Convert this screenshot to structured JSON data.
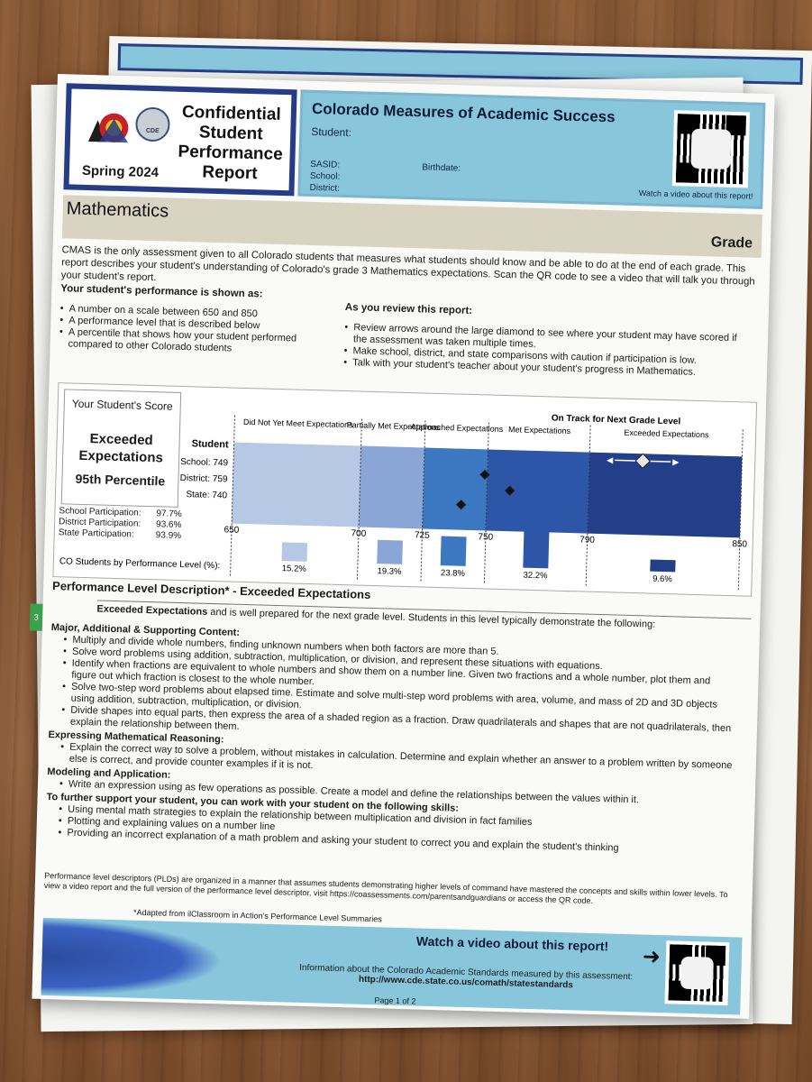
{
  "report": {
    "header_title": "Confidential Student Performance Report",
    "season": "Spring 2024",
    "agency": "CDE",
    "banner_title": "Colorado Measures of Academic Success",
    "student_label": "Student:",
    "sasid_label": "SASID:",
    "birthdate_label": "Birthdate:",
    "school_label": "School:",
    "district_label": "District:",
    "video_link": "Watch a video about this report!"
  },
  "subject": {
    "name": "Mathematics",
    "grade_label": "Grade"
  },
  "intro": "CMAS is the only assessment given to all Colorado students that measures what students should know and be able to do at the end of each grade. This report describes your student's understanding of Colorado's grade 3 Mathematics expectations. Scan the QR code to see a video that will talk you through your student's report.",
  "performance_shown": {
    "heading": "Your student's performance is shown as:",
    "items": [
      "A number on a scale between 650 and 850",
      "A performance level that is described below",
      "A percentile that shows how your student performed compared to other Colorado students"
    ]
  },
  "review": {
    "heading": "As you review this report:",
    "items": [
      "Review arrows around the large diamond to see where your student may have scored if the assessment was taken multiple times.",
      "Make school, district, and state comparisons with caution if participation is low.",
      "Talk with your student's teacher about your student's progress in Mathematics."
    ]
  },
  "score_box": {
    "label": "Your Student's Score",
    "level": "Exceeded Expectations",
    "percentile": "95th Percentile"
  },
  "participation": [
    {
      "label": "School Participation:",
      "value": "97.7%"
    },
    {
      "label": "District Participation:",
      "value": "93.6%"
    },
    {
      "label": "State Participation:",
      "value": "93.9%"
    }
  ],
  "chart_data": {
    "type": "bar",
    "levels": [
      "Did Not Yet Meet Expectations",
      "Partially Met Expectations",
      "Approached Expectations",
      "Met Expectations",
      "Exceeded Expectations"
    ],
    "on_track_label": "On Track for Next Grade Level",
    "scale_ticks": [
      650,
      700,
      725,
      750,
      790,
      850
    ],
    "row_labels": [
      "Student",
      "School: 749",
      "District: 759",
      "State: 740"
    ],
    "scores": {
      "school": 749,
      "district": 759,
      "state": 740
    },
    "bars_label": "CO Students by Performance Level (%):",
    "percentages": [
      "15.2%",
      "19.3%",
      "23.8%",
      "32.2%",
      "9.6%"
    ],
    "values": [
      15.2,
      19.3,
      23.8,
      32.2,
      9.6
    ],
    "colors": [
      "#b7c8e4",
      "#8aa6d6",
      "#3c77c2",
      "#2e56a8",
      "#233f8a"
    ]
  },
  "pld": {
    "title": "Performance Level Description* - Exceeded Expectations",
    "side_tab": "3",
    "lead_bold": "Exceeded Expectations",
    "lead_rest": " and is well prepared for the next grade level. Students in this level typically demonstrate the following:",
    "sections": [
      {
        "heading": "Major, Additional & Supporting Content:",
        "items": [
          "Multiply and divide whole numbers, finding unknown numbers when both factors are more than 5.",
          "Solve word problems using addition, subtraction, multiplication, or division, and represent these situations with equations.",
          "Identify when fractions are equivalent to whole numbers and show them on a number line. Given two fractions and a whole number, plot them and figure out which fraction is closest to the whole number.",
          "Solve two-step word problems about elapsed time. Estimate and solve multi-step word problems with area, volume, and mass of 2D and 3D objects using addition, subtraction, multiplication, or division.",
          "Divide shapes into equal parts, then express the area of a shaded region as a fraction. Draw quadrilaterals and shapes that are not quadrilaterals, then explain the relationship between them."
        ]
      },
      {
        "heading": "Expressing Mathematical Reasoning:",
        "items": [
          "Explain the correct way to solve a problem, without mistakes in calculation. Determine and explain whether an answer to a problem written by someone else is correct, and provide counter examples if it is not."
        ]
      },
      {
        "heading": "Modeling and Application:",
        "items": [
          "Write an expression using as few operations as possible. Create a model and define the relationships between the values within it."
        ]
      },
      {
        "heading": "To further support your student, you can work with your student on the following skills:",
        "items": [
          "Using mental math strategies to explain the relationship between multiplication and division in fact families",
          "Plotting and explaining values on a number line",
          "Providing an incorrect explanation of a math problem and asking your student to correct you and explain the student's thinking"
        ]
      }
    ]
  },
  "footnote": "Performance level descriptors (PLDs) are organized in a manner that assumes students demonstrating higher levels of command have mastered the concepts and skills within lower levels. To view a video report and the full version of the performance level descriptor, visit https://coassessments.com/parentsandguardians or access the QR code.",
  "adapted": "*Adapted from ilClassroom in Action's Performance Level Summaries",
  "bottom": {
    "watch": "Watch a video about this report!",
    "info": "Information about the Colorado Academic Standards measured by this assessment:",
    "url": "http://www.cde.state.co.us/comath/statestandards",
    "page": "Page 1 of 2"
  },
  "colors": {
    "navy": "#263c86",
    "banner_blue": "#88c6dc",
    "tan": "#d9d3c2"
  },
  "icons": [
    "colorado-logo-icon",
    "cde-seal-icon",
    "qr-code-icon",
    "arrow-icon",
    "diamond-icon"
  ]
}
